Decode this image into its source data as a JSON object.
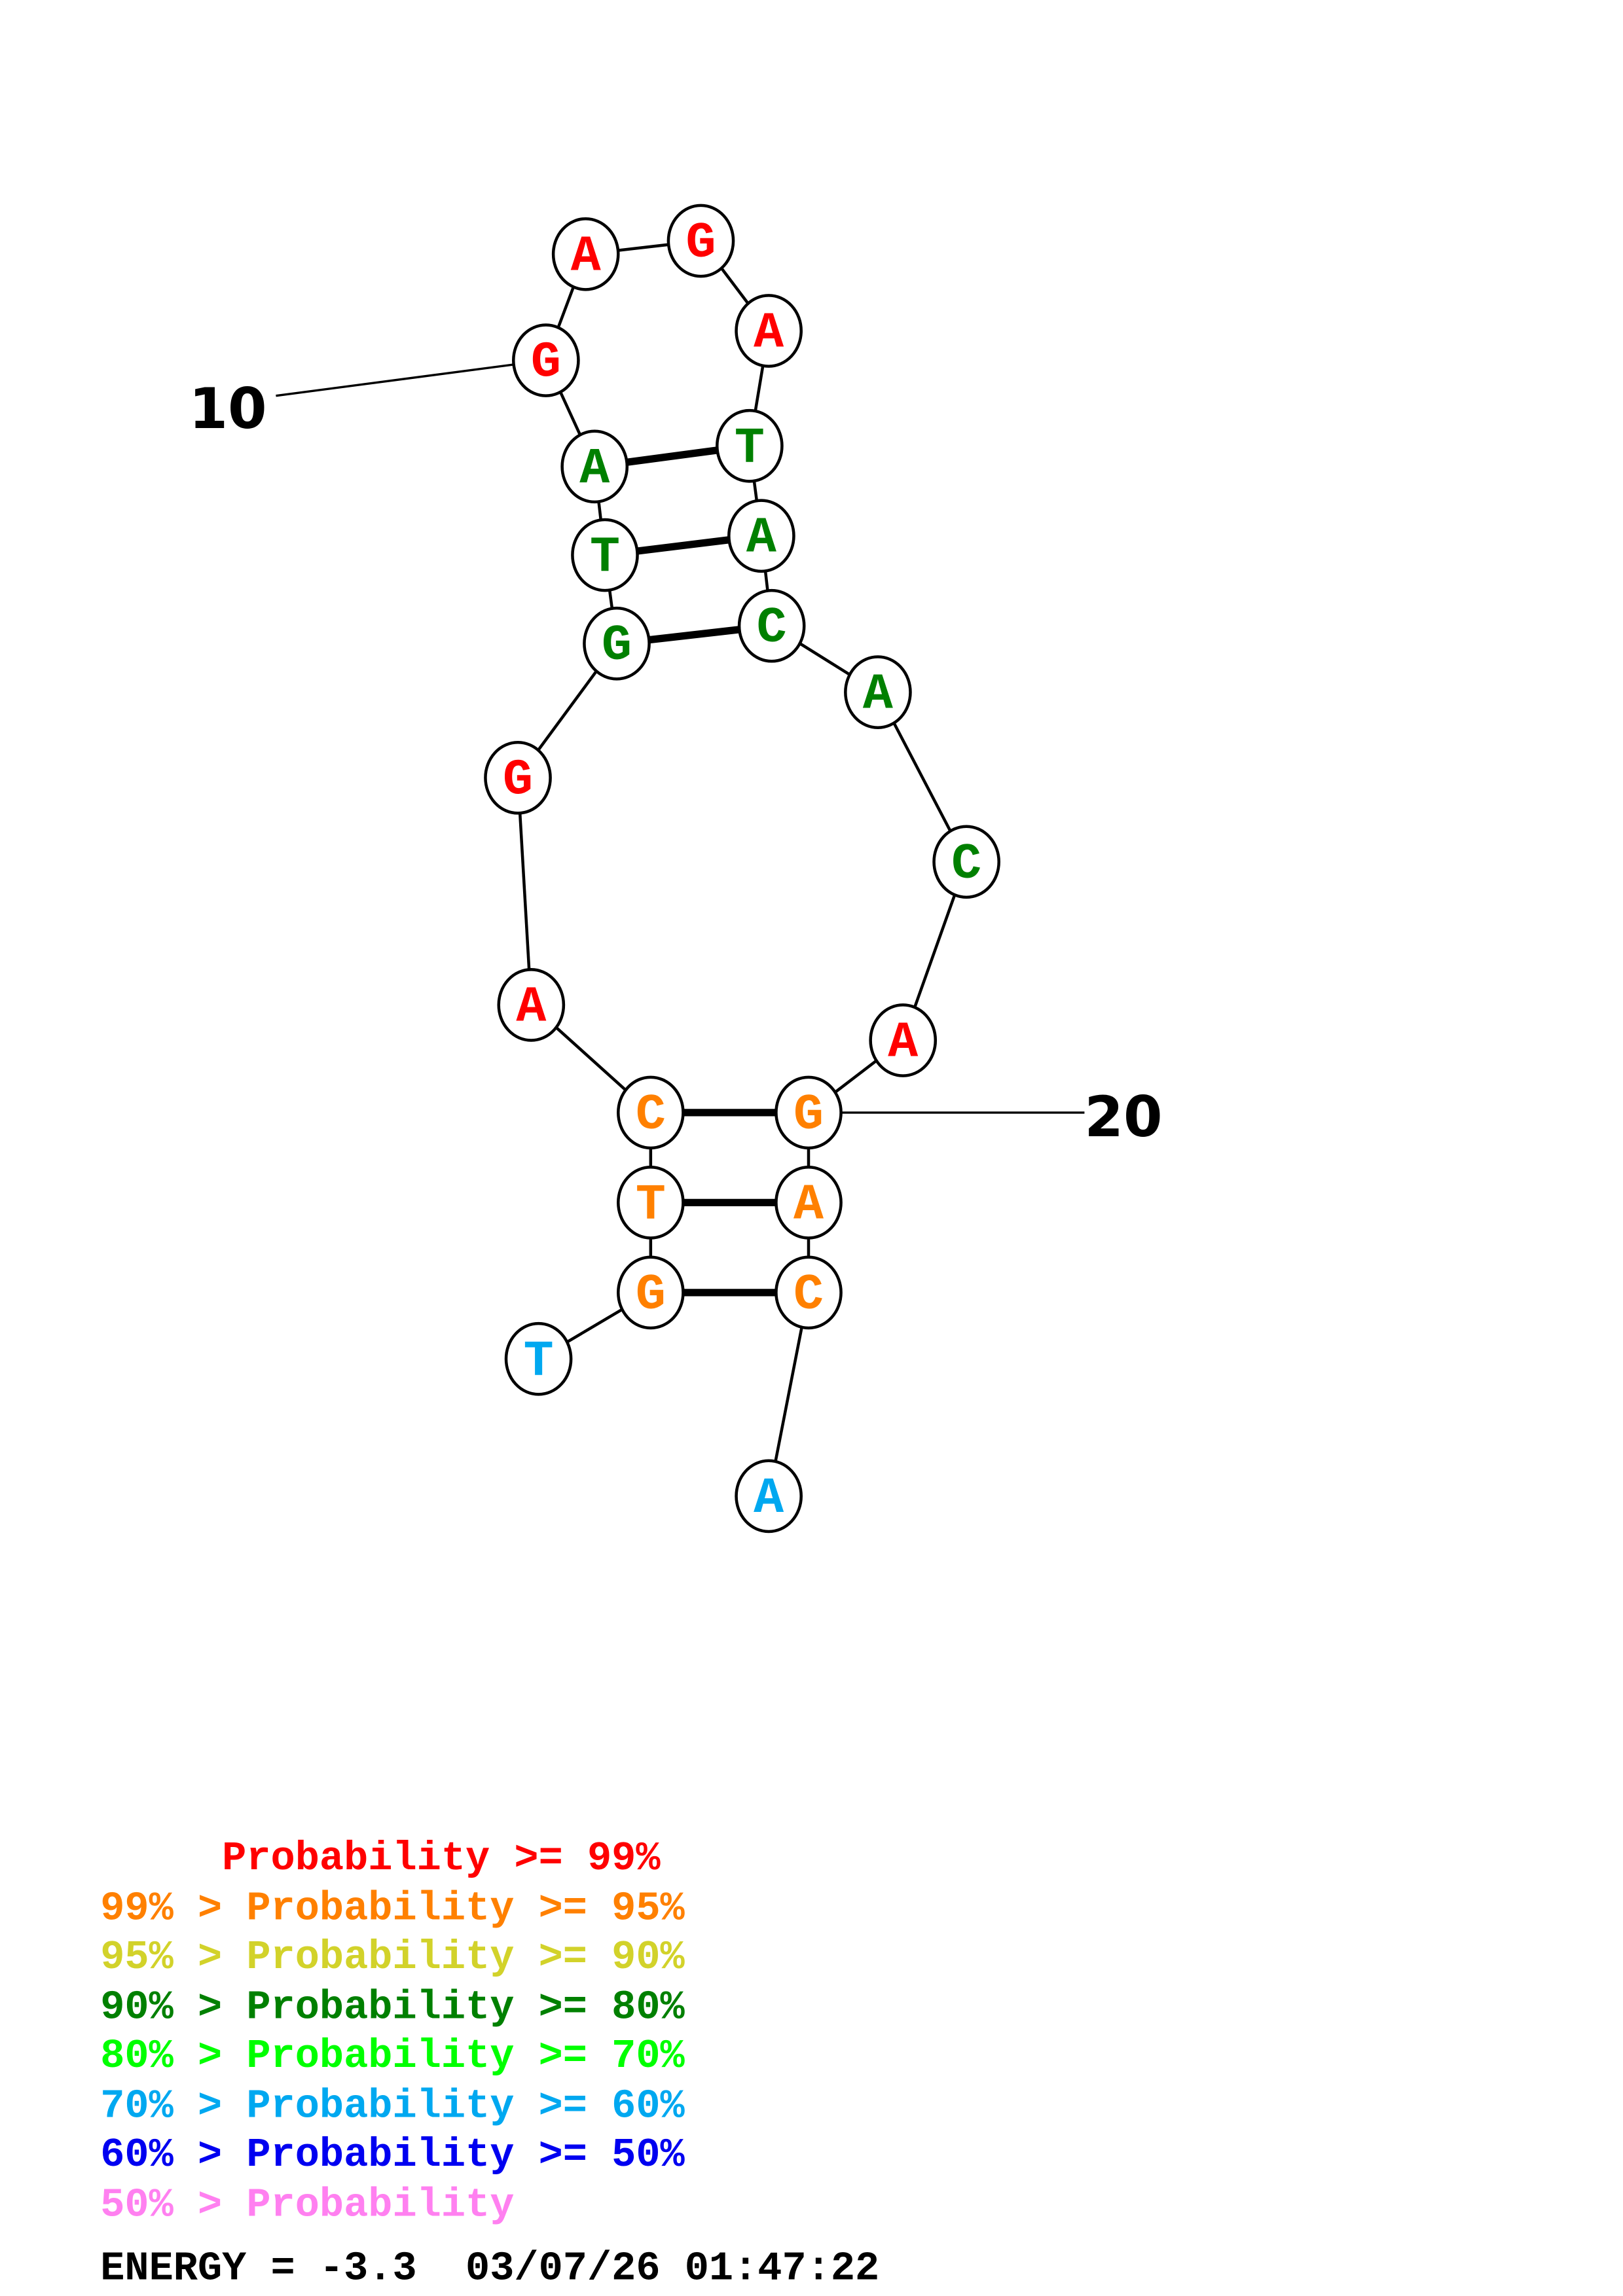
{
  "structure": {
    "sequence": [
      "T",
      "G",
      "T",
      "C",
      "A",
      "G",
      "G",
      "T",
      "A",
      "G",
      "A",
      "G",
      "A",
      "T",
      "A",
      "C",
      "A",
      "C",
      "A",
      "G",
      "A",
      "C",
      "A"
    ],
    "probability_class": [
      6,
      2,
      2,
      2,
      1,
      1,
      4,
      4,
      4,
      1,
      1,
      1,
      1,
      4,
      4,
      4,
      4,
      4,
      1,
      2,
      2,
      2,
      6
    ],
    "pairs": [
      [
        2,
        22
      ],
      [
        3,
        21
      ],
      [
        4,
        20
      ],
      [
        7,
        16
      ],
      [
        8,
        15
      ],
      [
        9,
        14
      ]
    ],
    "position_labels": [
      {
        "position": 10,
        "text": "10"
      },
      {
        "position": 20,
        "text": "20"
      }
    ]
  },
  "legend": {
    "colors": [
      "#ff0000",
      "#ff8000",
      "#d2d22a",
      "#008000",
      "#00ff00",
      "#00a8f0",
      "#0000f0",
      "#ff80f0"
    ],
    "lines": [
      "     Probability >= 99%",
      "99% > Probability >= 95%",
      "95% > Probability >= 90%",
      "90% > Probability >= 80%",
      "80% > Probability >= 70%",
      "70% > Probability >= 60%",
      "60% > Probability >= 50%",
      "50% > Probability"
    ]
  },
  "footer": {
    "energy": "ENERGY = -3.3  03/07/26 01:47:22"
  }
}
